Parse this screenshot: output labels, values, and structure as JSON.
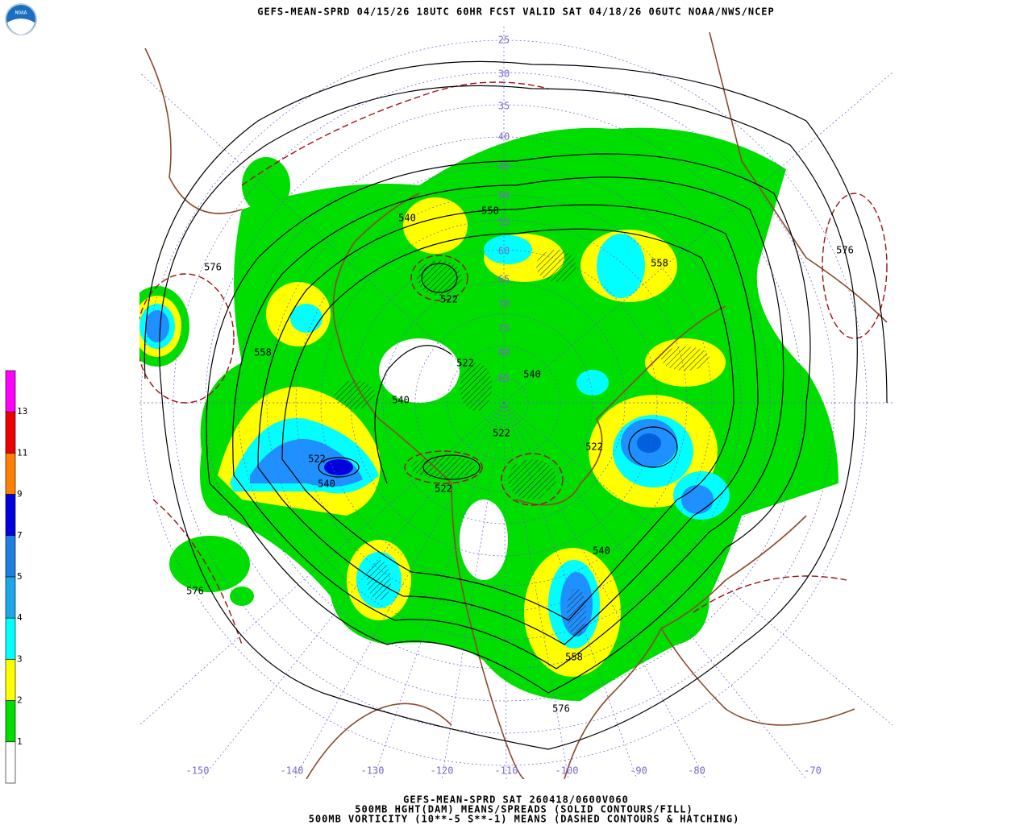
{
  "header": {
    "logo": "NOAA",
    "title": "GEFS-MEAN-SPRD 04/15/26 18UTC 60HR FCST VALID SAT 04/18/26 06UTC NOAA/NWS/NCEP"
  },
  "legend": {
    "colors": [
      "#ff00ff",
      "#ee0000",
      "#ff7f00",
      "#0000dd",
      "#1e7fe0",
      "#1aa8e8",
      "#00ffff",
      "#ffff00",
      "#00dd00",
      "#ffffff"
    ],
    "labels": [
      "13",
      "11",
      "9",
      "7",
      "5",
      "4",
      "3",
      "2",
      "1"
    ]
  },
  "map": {
    "lat_labels": [
      "25",
      "30",
      "35",
      "40",
      "45",
      "50",
      "55",
      "60",
      "65",
      "70",
      "75",
      "80",
      "85"
    ],
    "lon_labels": [
      "-150",
      "-140",
      "-130",
      "-120",
      "-110",
      "-100",
      "-90",
      "-80",
      "-70"
    ],
    "contour_labels": [
      "540",
      "558",
      "576",
      "576",
      "558",
      "522",
      "558",
      "522",
      "540",
      "540",
      "522",
      "522",
      "522",
      "540",
      "522",
      "540",
      "576",
      "558",
      "576"
    ]
  },
  "footer": {
    "lines": [
      "GEFS-MEAN-SPRD SAT 260418/0600V060",
      "500MB HGHT(DAM) MEANS/SPREADS (SOLID CONTOURS/FILL)",
      "500MB VORTICITY (10**-5 S**-1) MEANS (DASHED CONTOURS & HATCHING)"
    ]
  }
}
